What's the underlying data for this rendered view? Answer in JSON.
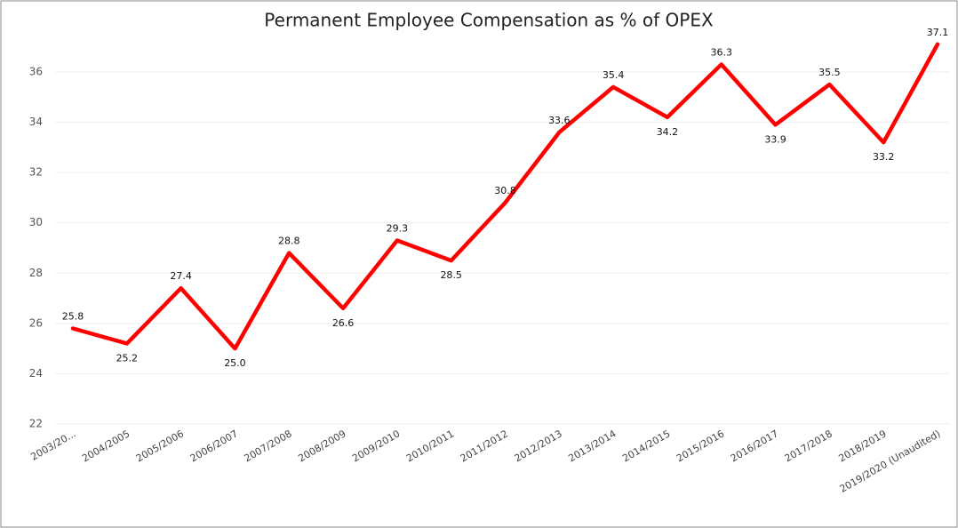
{
  "chart_data": {
    "type": "line",
    "title": "Permanent Employee Compensation as % of OPEX",
    "categories": [
      "2003/20...",
      "2004/2005",
      "2005/2006",
      "2006/2007",
      "2007/2008",
      "2008/2009",
      "2009/2010",
      "2010/2011",
      "2011/2012",
      "2012/2013",
      "2013/2014",
      "2014/2015",
      "2015/2016",
      "2016/2017",
      "2017/2018",
      "2018/2019",
      "2019/2020 (Unaudited)"
    ],
    "series": [
      {
        "name": "Permanent Employee Compensation as % of OPEX",
        "color": "#ff0000",
        "values": [
          25.8,
          25.2,
          27.4,
          25.0,
          28.8,
          26.6,
          29.3,
          28.5,
          30.8,
          33.6,
          35.4,
          34.2,
          36.3,
          33.9,
          35.5,
          33.2,
          37.1
        ],
        "value_labels": [
          "25.8",
          "25.2",
          "27.4",
          "25.0",
          "28.8",
          "26.6",
          "29.3",
          "28.5",
          "30.8",
          "33.6",
          "35.4",
          "34.2",
          "36.3",
          "33.9",
          "35.5",
          "33.2",
          "37.1"
        ]
      }
    ],
    "ylim": [
      22,
      37.5
    ],
    "yticks": [
      22,
      24,
      26,
      28,
      30,
      32,
      34,
      36
    ],
    "grid": true
  }
}
